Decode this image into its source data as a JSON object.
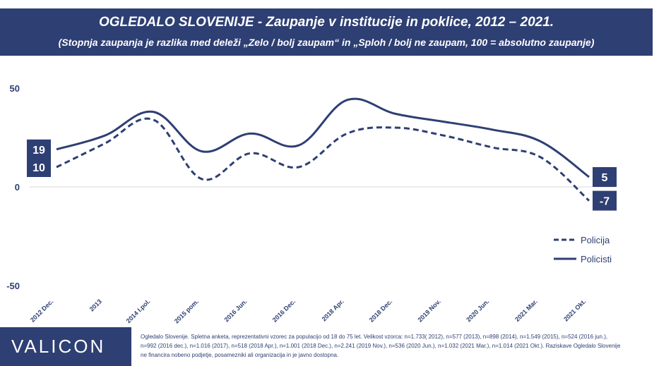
{
  "header": {
    "title": "OGLEDALO SLOVENIJE - Zaupanje v institucije in poklice, 2012 – 2021.",
    "subtitle": "(Stopnja zaupanja je razlika med deleži „Zelo / bolj zaupam“ in „Sploh / bolj ne zaupam, 100 = absolutno zaupanje)"
  },
  "chart_data": {
    "type": "line",
    "categories": [
      "2012 Dec.",
      "2013",
      "2014 I.pol.",
      "2015 pom.",
      "2016 Jun.",
      "2016 Dec.",
      "2018 Apr.",
      "2018 Dec.",
      "2019 Nov.",
      "2020 Jun.",
      "2021 Mar.",
      "2021 Okt."
    ],
    "yticks": [
      50,
      0,
      -50
    ],
    "ylim": [
      -50,
      50
    ],
    "grid": false,
    "legend_position": "right",
    "series": [
      {
        "name": "Policija",
        "style": "dashed",
        "color": "#2e3f73",
        "values": [
          10,
          22,
          34,
          4,
          17,
          10,
          27,
          30,
          26,
          20,
          15,
          -7
        ]
      },
      {
        "name": "Policisti",
        "style": "solid",
        "color": "#2e3f73",
        "values": [
          19,
          26,
          38,
          18,
          27,
          21,
          44,
          37,
          33,
          29,
          23,
          5
        ]
      }
    ],
    "data_labels": [
      {
        "series": "Policisti",
        "index": 0,
        "text": "19"
      },
      {
        "series": "Policija",
        "index": 0,
        "text": "10"
      },
      {
        "series": "Policisti",
        "index": 11,
        "text": "5"
      },
      {
        "series": "Policija",
        "index": 11,
        "text": "-7"
      }
    ]
  },
  "footer": {
    "logo": "VALICON",
    "note": "Ogledalo Slovenije. Spletna anketa, reprezentativni vzorec za populacijo od 18 do 75 let. Velikost vzorca: n=1.733( 2012), n=577 (2013), n=898 (2014), n=1.549 (2015), n=524 (2016 jun.), n=992 (2016 dec.), n=1.016 (2017), n=518 (2018 Apr.), n=1.001 (2018 Dec.), n=2.241 (2019 Nov.), n=536 (2020 Jun.), n=1.032 (2021 Mar.), n=1.014 (2021 Okt.). Raziskave Ogledalo Slovenije ne financira nobeno podjetje, posamezniki ali organizacija in je javno dostopna."
  }
}
